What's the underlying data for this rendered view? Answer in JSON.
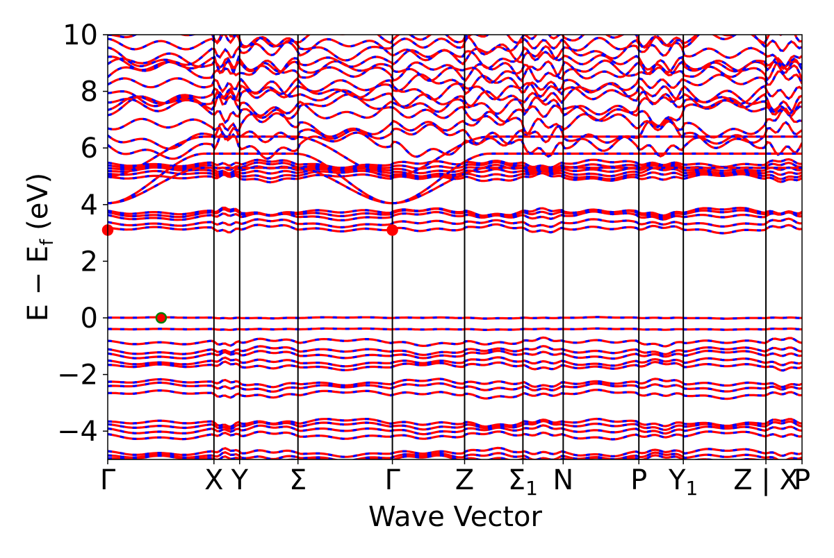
{
  "chart_data": {
    "type": "line",
    "title": "",
    "xlabel": "Wave Vector",
    "ylabel": {
      "main": "E − E",
      "sub": "f",
      "unit": " (eV)"
    },
    "ylim": [
      -5,
      10
    ],
    "yticks": [
      -4,
      -2,
      0,
      2,
      4,
      6,
      8,
      10
    ],
    "ytick_labels": [
      "−4",
      "−2",
      "0",
      "2",
      "4",
      "6",
      "8",
      "10"
    ],
    "kpoints": [
      {
        "label": "Γ",
        "sub": "",
        "x": 0.0
      },
      {
        "label": "X",
        "sub": "",
        "x": 0.153
      },
      {
        "label": "Y",
        "sub": "",
        "x": 0.19
      },
      {
        "label": "Σ",
        "sub": "",
        "x": 0.274
      },
      {
        "label": "Γ",
        "sub": "",
        "x": 0.41
      },
      {
        "label": "Z",
        "sub": "",
        "x": 0.514
      },
      {
        "label": "Σ",
        "sub": "1",
        "x": 0.598
      },
      {
        "label": "N",
        "sub": "",
        "x": 0.656
      },
      {
        "label": "P",
        "sub": "",
        "x": 0.765
      },
      {
        "label": "Y",
        "sub": "1",
        "x": 0.829
      },
      {
        "label": "Z | X",
        "sub": "",
        "x": 0.948
      },
      {
        "label": "P",
        "sub": "",
        "x": 1.0
      }
    ],
    "series_colors": {
      "primary": "#ff0000",
      "secondary": "#0000ff"
    },
    "markers": [
      {
        "type": "CBM",
        "x": 0.0,
        "y": 3.1,
        "color": "#ff0000"
      },
      {
        "type": "CBM",
        "x": 0.41,
        "y": 3.1,
        "color": "#ff0000"
      },
      {
        "type": "VBM",
        "x": 0.077,
        "y": 0.0,
        "color": "#ff0000",
        "edge": "#008000"
      }
    ],
    "bands": {
      "conduction_flat": [
        3.15,
        3.35,
        3.6,
        3.7,
        3.75,
        4.95,
        5.05,
        5.15,
        5.25,
        5.35,
        5.45
      ],
      "valence_flat": [
        0.0,
        -0.4,
        -0.85,
        -1.15,
        -1.3,
        -1.55,
        -1.7,
        -2.3,
        -2.45,
        -2.7,
        -3.7,
        -3.8,
        -3.95,
        -4.15,
        -4.75,
        -4.9,
        -5.0
      ],
      "upper_flat": [
        6.1,
        6.5,
        6.8,
        7.3,
        7.5,
        7.75,
        8.05,
        8.3,
        8.5,
        8.9,
        9.1,
        9.4,
        9.7,
        9.85
      ]
    },
    "grid": false,
    "legend": "none"
  }
}
